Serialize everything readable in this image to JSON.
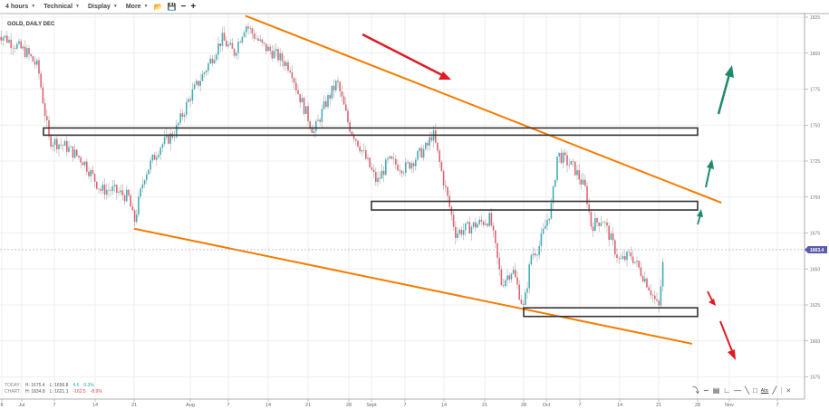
{
  "toolbar": {
    "items": [
      {
        "label": "4 hours"
      },
      {
        "label": "Technical"
      },
      {
        "label": "Display"
      },
      {
        "label": "More"
      }
    ],
    "icons": [
      "folder-open-icon",
      "save-icon",
      "zoom-out-icon",
      "zoom-in-icon"
    ]
  },
  "chart_data": {
    "type": "candlestick",
    "title": "GOLD, DAILY DEC",
    "interval": "4 hours",
    "ylim": [
      1565,
      1830
    ],
    "y_ticks": [
      1825,
      1800,
      1775,
      1750,
      1725,
      1700,
      1675,
      1650,
      1625,
      1600,
      1575
    ],
    "x_ticks": [
      {
        "label": "8",
        "date": "06-28"
      },
      {
        "label": "Jul",
        "date": "07-01"
      },
      {
        "label": "7",
        "date": "07-07"
      },
      {
        "label": "14",
        "date": "07-14"
      },
      {
        "label": "21",
        "date": "07-21"
      },
      {
        "label": "Aug",
        "date": "08-01"
      },
      {
        "label": "7",
        "date": "08-07"
      },
      {
        "label": "14",
        "date": "08-14"
      },
      {
        "label": "21",
        "date": "08-21"
      },
      {
        "label": "28",
        "date": "08-28"
      },
      {
        "label": "Sept",
        "date": "09-01"
      },
      {
        "label": "7",
        "date": "09-07"
      },
      {
        "label": "14",
        "date": "09-14"
      },
      {
        "label": "21",
        "date": "09-21"
      },
      {
        "label": "28",
        "date": "09-28"
      },
      {
        "label": "Oct",
        "date": "10-01"
      },
      {
        "label": "7",
        "date": "10-07"
      },
      {
        "label": "14",
        "date": "10-14"
      },
      {
        "label": "21",
        "date": "10-21"
      },
      {
        "label": "28",
        "date": "10-28"
      },
      {
        "label": "Nov",
        "date": "11-01"
      },
      {
        "label": "7",
        "date": "11-07"
      }
    ],
    "price_path": [
      [
        "06-27",
        1815
      ],
      [
        "07-02",
        1800
      ],
      [
        "07-04",
        1790
      ],
      [
        "07-06",
        1740
      ],
      [
        "07-09",
        1735
      ],
      [
        "07-12",
        1725
      ],
      [
        "07-15",
        1705
      ],
      [
        "07-17",
        1705
      ],
      [
        "07-20",
        1700
      ],
      [
        "07-21",
        1682
      ],
      [
        "07-23",
        1715
      ],
      [
        "07-26",
        1735
      ],
      [
        "07-29",
        1745
      ],
      [
        "08-01",
        1770
      ],
      [
        "08-03",
        1785
      ],
      [
        "08-06",
        1810
      ],
      [
        "08-08",
        1800
      ],
      [
        "08-10",
        1820
      ],
      [
        "08-13",
        1805
      ],
      [
        "08-15",
        1800
      ],
      [
        "08-18",
        1790
      ],
      [
        "08-19",
        1775
      ],
      [
        "08-22",
        1745
      ],
      [
        "08-24",
        1765
      ],
      [
        "08-26",
        1780
      ],
      [
        "08-28",
        1750
      ],
      [
        "08-30",
        1735
      ],
      [
        "09-02",
        1710
      ],
      [
        "09-04",
        1725
      ],
      [
        "09-07",
        1720
      ],
      [
        "09-11",
        1735
      ],
      [
        "09-12",
        1745
      ],
      [
        "09-14",
        1710
      ],
      [
        "09-16",
        1675
      ],
      [
        "09-19",
        1680
      ],
      [
        "09-22",
        1685
      ],
      [
        "09-24",
        1640
      ],
      [
        "09-26",
        1650
      ],
      [
        "09-28",
        1622
      ],
      [
        "09-29",
        1660
      ],
      [
        "09-30",
        1665
      ],
      [
        "10-02",
        1695
      ],
      [
        "10-03",
        1730
      ],
      [
        "10-06",
        1720
      ],
      [
        "10-08",
        1705
      ],
      [
        "10-09",
        1680
      ],
      [
        "10-11",
        1685
      ],
      [
        "10-14",
        1655
      ],
      [
        "10-16",
        1660
      ],
      [
        "10-19",
        1640
      ],
      [
        "10-21",
        1622
      ],
      [
        "10-22",
        1663.4
      ]
    ],
    "last_price": "1663.4",
    "colors": {
      "up": "#3fb0b8",
      "down": "#e06470",
      "wick": "#aaaaaa",
      "trendline": "#f57c00",
      "last_price_tag": "#5b5ba8",
      "box": "#333333",
      "arrow_up": "#1e8a6e",
      "arrow_down": "#e01b24"
    },
    "annotations": {
      "boxes": [
        {
          "from": "07-05",
          "to": "10-28",
          "top": 1748,
          "bottom": 1743
        },
        {
          "from": "09-01",
          "to": "10-28",
          "top": 1697,
          "bottom": 1691
        },
        {
          "from": "09-28",
          "to": "10-28",
          "top": 1623,
          "bottom": 1617
        }
      ],
      "trendlines": [
        {
          "from": [
            "08-10",
            1826
          ],
          "to": [
            "10-31",
            1696
          ]
        },
        {
          "from": [
            "07-21",
            1678
          ],
          "to": [
            "10-27",
            1598
          ]
        }
      ]
    },
    "grid": true
  },
  "stats": {
    "today": {
      "label": "TODAY:",
      "high": "H: 1675.4",
      "low": "L: 1656.8",
      "change": "4.6",
      "pct": "0.3%"
    },
    "chart": {
      "label": "CHART:",
      "high": "H: 1834.8",
      "low": "L: 1621.1",
      "change": "-162.5",
      "pct": "-8.9%"
    }
  },
  "draw_tools": [
    "pointer-icon",
    "curve-icon",
    "fibonacci-icon",
    "pitchfork-icon",
    "horizontal-line-icon",
    "trend-line-icon",
    "rectangle-icon",
    "text-icon",
    "line-icon",
    "separator",
    "close-icon"
  ]
}
